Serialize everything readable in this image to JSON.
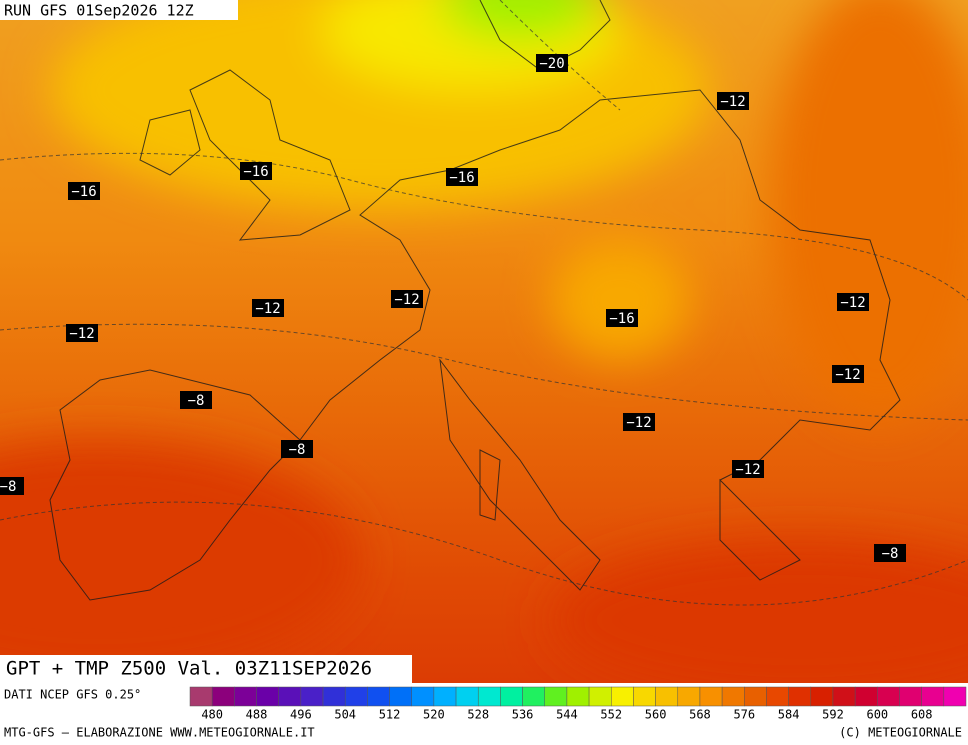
{
  "header": {
    "run": "RUN GFS 01Sep2026 12Z"
  },
  "map": {
    "title": "GPT + TMP Z500 Val. 03Z11SEP2026",
    "contour_labels": [
      "−20",
      "−12",
      "−16",
      "−16",
      "−16",
      "−12",
      "−12",
      "−12",
      "−16",
      "−12",
      "−12",
      "−8",
      "−12",
      "−8",
      "−12",
      "−8",
      "−8"
    ]
  },
  "footer": {
    "source": "DATI NCEP GFS 0.25°",
    "credit": "MTG-GFS — ELABORAZIONE WWW.METEOGIORNALE.IT",
    "copyright": "(C) METEOGIORNALE"
  },
  "colorbar": {
    "labels": [
      "480",
      "488",
      "496",
      "504",
      "512",
      "520",
      "528",
      "536",
      "544",
      "552",
      "560",
      "568",
      "576",
      "584",
      "592",
      "600",
      "608"
    ],
    "colors": [
      "#a83a6e",
      "#8c007c",
      "#7c0098",
      "#6a00a8",
      "#5a10b8",
      "#4a20c8",
      "#3030d8",
      "#2040e8",
      "#1050f0",
      "#0070f8",
      "#0090ff",
      "#00b0ff",
      "#00d0f0",
      "#00e8d0",
      "#00f0a0",
      "#20f060",
      "#60f020",
      "#a0f000",
      "#d0f000",
      "#f8f000",
      "#f8d800",
      "#f8c000",
      "#f8a800",
      "#f89000",
      "#f07800",
      "#e86000",
      "#e84800",
      "#e03000",
      "#d82000",
      "#d01018",
      "#d00030",
      "#d80050",
      "#e00070",
      "#e80090",
      "#f000b0"
    ]
  }
}
